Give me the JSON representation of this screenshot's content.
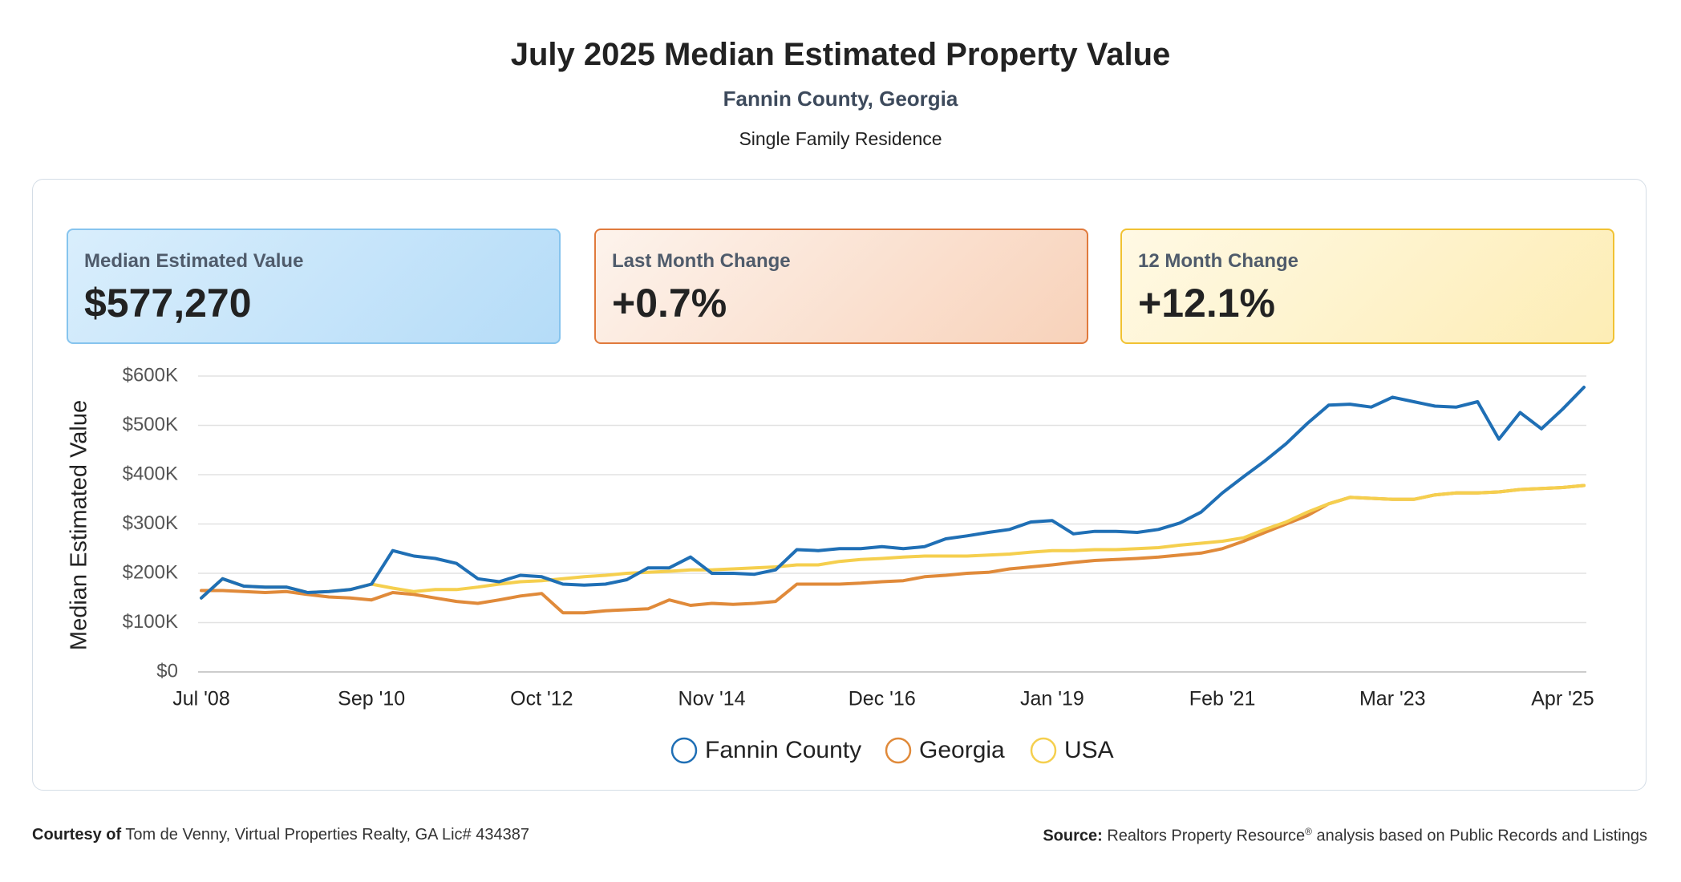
{
  "header": {
    "title": "July 2025 Median Estimated Property Value",
    "subtitle": "Fannin County, Georgia",
    "note": "Single Family Residence"
  },
  "cards": [
    {
      "label": "Median Estimated Value",
      "value": "$577,270"
    },
    {
      "label": "Last Month Change",
      "value": "+0.7%"
    },
    {
      "label": "12 Month Change",
      "value": "+12.1%"
    }
  ],
  "chart_data": {
    "type": "line",
    "y_label": "Median Estimated Value",
    "categories": [
      "Jul '08",
      null,
      null,
      null,
      null,
      null,
      null,
      null,
      "Sep '10",
      null,
      null,
      null,
      null,
      null,
      null,
      null,
      "Oct '12",
      null,
      null,
      null,
      null,
      null,
      null,
      null,
      "Nov '14",
      null,
      null,
      null,
      null,
      null,
      null,
      null,
      "Dec '16",
      null,
      null,
      null,
      null,
      null,
      null,
      null,
      "Jan '19",
      null,
      null,
      null,
      null,
      null,
      null,
      null,
      "Feb '21",
      null,
      null,
      null,
      null,
      null,
      null,
      null,
      "Mar '23",
      null,
      null,
      null,
      null,
      null,
      null,
      null,
      "Apr '25",
      null
    ],
    "series": [
      {
        "name": "Fannin County",
        "color": "#1f6fb5",
        "values": [
          150,
          189,
          174,
          172,
          172,
          161,
          163,
          167,
          178,
          246,
          235,
          230,
          220,
          189,
          183,
          196,
          193,
          178,
          176,
          178,
          187,
          211,
          211,
          233,
          200,
          200,
          198,
          207,
          248,
          246,
          250,
          250,
          254,
          250,
          254,
          270,
          276,
          283,
          289,
          304,
          307,
          280,
          285,
          285,
          283,
          289,
          302,
          324,
          363,
          396,
          428,
          463,
          504,
          541,
          543,
          537,
          557,
          548,
          539,
          537,
          548,
          472,
          526,
          493,
          533,
          577.27
        ]
      },
      {
        "name": "Georgia",
        "color": "#e08a3a",
        "values": [
          165,
          165,
          163,
          161,
          163,
          157,
          152,
          150,
          146,
          161,
          157,
          150,
          143,
          139,
          146,
          154,
          159,
          120,
          120,
          124,
          126,
          128,
          146,
          135,
          139,
          137,
          139,
          143,
          178,
          178,
          178,
          180,
          183,
          185,
          193,
          196,
          200,
          202,
          209,
          213,
          217,
          222,
          226,
          228,
          230,
          233,
          237,
          241,
          250,
          265,
          283,
          300,
          317,
          341,
          354,
          352,
          350,
          350,
          359,
          363,
          363,
          365,
          370,
          372,
          374,
          378
        ]
      },
      {
        "name": "USA",
        "color": "#f5cf4e",
        "values": [
          150,
          189,
          174,
          172,
          172,
          161,
          163,
          167,
          178,
          170,
          163,
          167,
          167,
          172,
          178,
          183,
          185,
          189,
          193,
          196,
          200,
          202,
          204,
          207,
          207,
          209,
          211,
          213,
          217,
          217,
          224,
          228,
          230,
          233,
          235,
          235,
          235,
          237,
          239,
          243,
          246,
          246,
          248,
          248,
          250,
          252,
          257,
          261,
          265,
          272,
          289,
          304,
          324,
          341,
          354,
          352,
          350,
          350,
          359,
          363,
          363,
          365,
          370,
          372,
          374,
          378
        ]
      }
    ],
    "draw_order": [
      1,
      2,
      0
    ],
    "ylim": [
      0,
      600
    ],
    "yticks": [
      {
        "value": 0,
        "label": "$0"
      },
      {
        "value": 100,
        "label": "$100K"
      },
      {
        "value": 200,
        "label": "$200K"
      },
      {
        "value": 300,
        "label": "$300K"
      },
      {
        "value": 400,
        "label": "$400K"
      },
      {
        "value": 500,
        "label": "$500K"
      },
      {
        "value": 600,
        "label": "$600K"
      }
    ],
    "grid": true,
    "legend": "bottom"
  },
  "footer": {
    "courtesy_label": "Courtesy of",
    "courtesy": "Tom de Venny, Virtual Properties Realty, GA Lic# 434387",
    "source_label": "Source:",
    "source_name": "Realtors Property Resource",
    "source_mark": "®",
    "source_rest": "analysis based on Public Records and Listings"
  }
}
